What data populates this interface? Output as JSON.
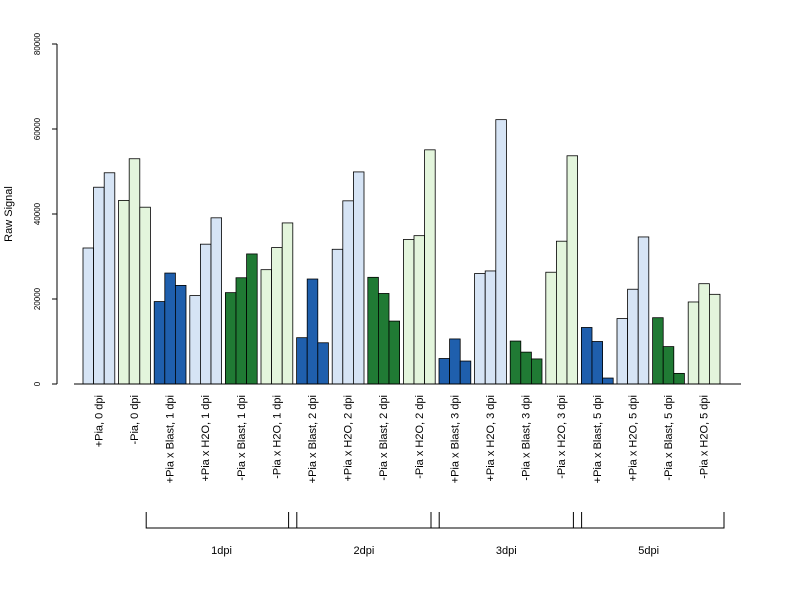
{
  "chart_data": {
    "type": "bar",
    "title": "",
    "xlabel": "",
    "ylabel": "Raw Signal",
    "ylim": [
      0,
      80000
    ],
    "yticks": [
      0,
      20000,
      40000,
      60000,
      80000
    ],
    "yticks_text": [
      "0",
      "20000",
      "40000",
      "60000",
      "80000"
    ],
    "grid": false,
    "categories": [
      "+Pia, 0 dpi",
      "-Pia, 0 dpi",
      "+Pia x Blast, 1 dpi",
      "+Pia x H2O, 1 dpi",
      "-Pia x Blast, 1 dpi",
      "-Pia x H2O, 1 dpi",
      "+Pia x Blast, 2 dpi",
      "+Pia x H2O, 2 dpi",
      "-Pia x Blast, 2 dpi",
      "-Pia x H2O, 2 dpi",
      "+Pia x Blast, 3 dpi",
      "+Pia x H2O, 3 dpi",
      "-Pia x Blast, 3 dpi",
      "-Pia x H2O, 3 dpi",
      "+Pia x Blast, 5 dpi",
      "+Pia x H2O, 5 dpi",
      "-Pia x Blast, 5 dpi",
      "-Pia x H2O, 5 dpi"
    ],
    "colors": [
      "#d6e4f5",
      "#e3f5dc",
      "#1f5fad",
      "#d6e4f5",
      "#207a34",
      "#e3f5dc",
      "#1f5fad",
      "#d6e4f5",
      "#207a34",
      "#e3f5dc",
      "#1f5fad",
      "#d6e4f5",
      "#207a34",
      "#e3f5dc",
      "#1f5fad",
      "#d6e4f5",
      "#207a34",
      "#e3f5dc"
    ],
    "values": [
      [
        32000,
        46300,
        49700
      ],
      [
        43200,
        53000,
        41600
      ],
      [
        19400,
        26100,
        23200
      ],
      [
        20800,
        32900,
        39100
      ],
      [
        21500,
        25000,
        30600
      ],
      [
        26900,
        32100,
        37900
      ],
      [
        10900,
        24700,
        9700
      ],
      [
        31700,
        43100,
        49900
      ],
      [
        25100,
        21300,
        14800
      ],
      [
        34000,
        34900,
        55100
      ],
      [
        6000,
        10600,
        5400
      ],
      [
        26000,
        26600,
        62200
      ],
      [
        10100,
        7500,
        5900
      ],
      [
        26300,
        33600,
        53700
      ],
      [
        13300,
        10000,
        1400
      ],
      [
        15400,
        22300,
        34600
      ],
      [
        15600,
        8800,
        2500
      ],
      [
        19300,
        23600,
        21100
      ]
    ],
    "groups": [
      {
        "label": "1dpi",
        "from": 2,
        "to": 5
      },
      {
        "label": "2dpi",
        "from": 6,
        "to": 9
      },
      {
        "label": "3dpi",
        "from": 10,
        "to": 13
      },
      {
        "label": "5dpi",
        "from": 14,
        "to": 17
      }
    ]
  }
}
